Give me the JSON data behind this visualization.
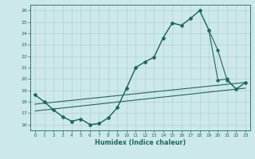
{
  "xlabel": "Humidex (Indice chaleur)",
  "bg_color": "#cce8e8",
  "line_color": "#1a6b5a",
  "grid_color": "#aacccc",
  "xlim": [
    -0.5,
    23.5
  ],
  "ylim": [
    15.5,
    26.5
  ],
  "yticks": [
    16,
    17,
    18,
    19,
    20,
    21,
    22,
    23,
    24,
    25,
    26
  ],
  "xticks": [
    0,
    1,
    2,
    3,
    4,
    5,
    6,
    7,
    8,
    9,
    10,
    11,
    12,
    13,
    14,
    15,
    16,
    17,
    18,
    19,
    20,
    21,
    22,
    23
  ],
  "line_jagged_x": [
    0,
    1,
    2,
    3,
    4,
    5,
    6,
    7,
    8,
    9,
    10,
    11,
    12,
    13,
    14,
    15,
    16,
    17,
    18,
    19,
    20,
    21,
    22,
    23
  ],
  "line_jagged_y": [
    18.6,
    18.0,
    17.3,
    16.7,
    16.3,
    16.5,
    16.0,
    16.1,
    16.6,
    17.5,
    19.2,
    21.0,
    21.5,
    21.9,
    23.6,
    24.9,
    24.7,
    25.3,
    26.0,
    24.3,
    22.5,
    19.9,
    19.1,
    19.7
  ],
  "line_upper_x": [
    0,
    1,
    2,
    3,
    4,
    5,
    6,
    7,
    8,
    9,
    10,
    11,
    12,
    13,
    14,
    15,
    16,
    17,
    18,
    19,
    20,
    21,
    22,
    23
  ],
  "line_upper_y": [
    18.6,
    18.0,
    17.3,
    16.7,
    16.3,
    16.5,
    16.0,
    16.1,
    16.6,
    17.5,
    19.2,
    21.0,
    21.5,
    21.9,
    23.6,
    24.9,
    24.7,
    25.3,
    26.0,
    24.3,
    19.9,
    20.0,
    19.1,
    19.7
  ],
  "trend1_x": [
    0,
    23
  ],
  "trend1_y": [
    17.8,
    19.7
  ],
  "trend2_x": [
    0,
    23
  ],
  "trend2_y": [
    17.2,
    19.2
  ]
}
